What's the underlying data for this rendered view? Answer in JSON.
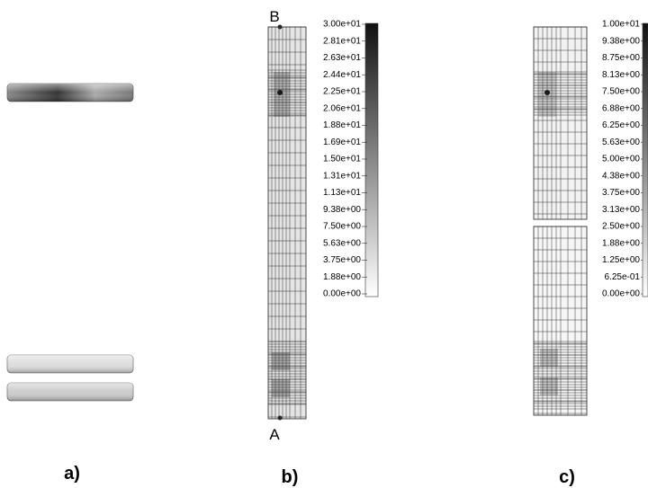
{
  "panels": [
    {
      "label": "a)"
    },
    {
      "label": "b)",
      "top_point": "B",
      "bottom_point": "A",
      "colorbar": {
        "ticks": [
          "3.00e+01",
          "2.81e+01",
          "2.63e+01",
          "2.44e+01",
          "2.25e+01",
          "2.06e+01",
          "1.88e+01",
          "1.69e+01",
          "1.50e+01",
          "1.31e+01",
          "1.13e+01",
          "9.38e+00",
          "7.50e+00",
          "5.63e+00",
          "3.75e+00",
          "1.88e+00",
          "0.00e+00"
        ]
      }
    },
    {
      "label": "c)",
      "colorbar": {
        "ticks": [
          "1.00e+01",
          "9.38e+00",
          "8.75e+00",
          "8.13e+00",
          "7.50e+00",
          "6.88e+00",
          "6.25e+00",
          "5.63e+00",
          "5.00e+00",
          "4.38e+00",
          "3.75e+00",
          "3.13e+00",
          "2.50e+00",
          "1.88e+00",
          "1.25e+00",
          "6.25e-01",
          "0.00e+00"
        ]
      }
    }
  ]
}
